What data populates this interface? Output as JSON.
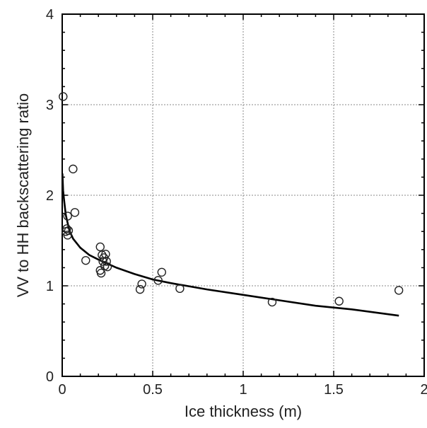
{
  "chart_data": {
    "type": "scatter",
    "title": "",
    "xlabel": "Ice thickness (m)",
    "ylabel": "VV to HH backscattering ratio",
    "xlim": [
      0,
      2
    ],
    "ylim": [
      0,
      4
    ],
    "x_ticks": [
      0,
      0.5,
      1,
      1.5,
      2
    ],
    "x_tick_labels": [
      "0",
      "0.5",
      "1",
      "1.5",
      "2"
    ],
    "y_ticks": [
      0,
      1,
      2,
      3,
      4
    ],
    "y_tick_labels": [
      "0",
      "1",
      "2",
      "3",
      "4"
    ],
    "grid": true,
    "series": [
      {
        "marker": "open-circle",
        "points": [
          [
            0.005,
            3.09
          ],
          [
            0.06,
            2.29
          ],
          [
            0.03,
            1.77
          ],
          [
            0.07,
            1.81
          ],
          [
            0.02,
            1.6
          ],
          [
            0.025,
            1.63
          ],
          [
            0.03,
            1.56
          ],
          [
            0.035,
            1.61
          ],
          [
            0.13,
            1.28
          ],
          [
            0.21,
            1.43
          ],
          [
            0.22,
            1.34
          ],
          [
            0.225,
            1.27
          ],
          [
            0.23,
            1.31
          ],
          [
            0.235,
            1.22
          ],
          [
            0.24,
            1.35
          ],
          [
            0.245,
            1.27
          ],
          [
            0.21,
            1.17
          ],
          [
            0.215,
            1.14
          ],
          [
            0.25,
            1.21
          ],
          [
            0.43,
            0.96
          ],
          [
            0.44,
            1.02
          ],
          [
            0.53,
            1.06
          ],
          [
            0.55,
            1.15
          ],
          [
            0.65,
            0.97
          ],
          [
            1.16,
            0.82
          ],
          [
            1.53,
            0.83
          ],
          [
            1.86,
            0.95
          ]
        ]
      },
      {
        "marker": "line",
        "points": [
          [
            0.001,
            2.24
          ],
          [
            0.005,
            2.05
          ],
          [
            0.01,
            1.95
          ],
          [
            0.02,
            1.78
          ],
          [
            0.04,
            1.61
          ],
          [
            0.06,
            1.52
          ],
          [
            0.1,
            1.42
          ],
          [
            0.15,
            1.34
          ],
          [
            0.2,
            1.29
          ],
          [
            0.3,
            1.2
          ],
          [
            0.4,
            1.13
          ],
          [
            0.5,
            1.07
          ],
          [
            0.6,
            1.03
          ],
          [
            0.8,
            0.96
          ],
          [
            1.0,
            0.9
          ],
          [
            1.2,
            0.84
          ],
          [
            1.4,
            0.78
          ],
          [
            1.6,
            0.74
          ],
          [
            1.86,
            0.67
          ]
        ]
      }
    ]
  }
}
